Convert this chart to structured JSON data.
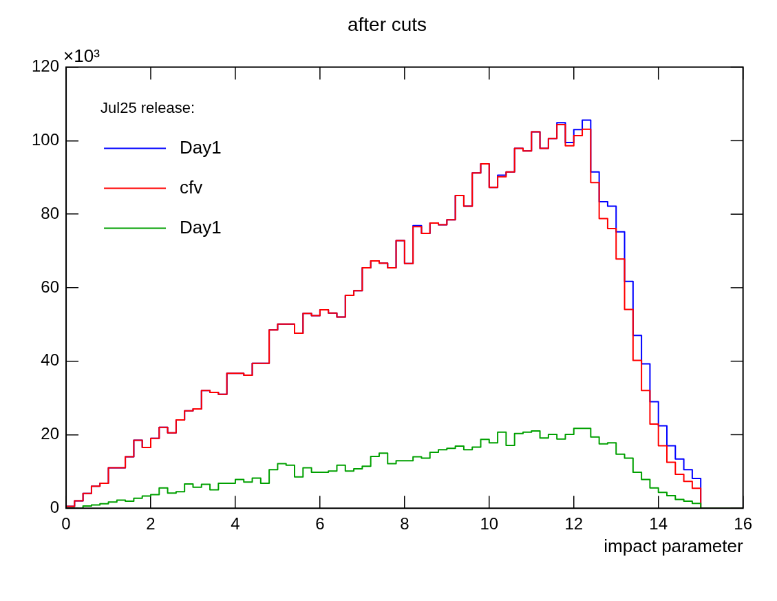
{
  "chart_data": {
    "type": "histogram",
    "title": "after cuts",
    "xlabel": "impact parameter",
    "annotations": [
      "×10³"
    ],
    "legend_title": "Jul25 release:",
    "legend": "top left",
    "bins": [
      0,
      0.2,
      0.4,
      0.6,
      0.8,
      1,
      1.2,
      1.4,
      1.6,
      1.8,
      2,
      2.2,
      2.4,
      2.6,
      2.8,
      3,
      3.2,
      3.4,
      3.6,
      3.8,
      4,
      4.2,
      4.4,
      4.6,
      4.8,
      5,
      5.2,
      5.4,
      5.6,
      5.8,
      6,
      6.2,
      6.4,
      6.6,
      6.8,
      7,
      7.2,
      7.4,
      7.6,
      7.8,
      8,
      8.2,
      8.4,
      8.6,
      8.8,
      9,
      9.2,
      9.4,
      9.6,
      9.8,
      10,
      10.2,
      10.4,
      10.6,
      10.8,
      11,
      11.2,
      11.4,
      11.6,
      11.8,
      12,
      12.2,
      12.4,
      12.6,
      12.8,
      13,
      13.2,
      13.4,
      13.6,
      13.8,
      14,
      14.2,
      14.4,
      14.6,
      14.8,
      15,
      15.2,
      15.4,
      15.6,
      15.8,
      16
    ],
    "series": [
      {
        "name": "Day1",
        "color": "#0000ff",
        "values": [
          0.5,
          2,
          4,
          6,
          6.8,
          11,
          11,
          14,
          18.5,
          16.5,
          19,
          22,
          20.5,
          24,
          26.5,
          27,
          32,
          31.5,
          31,
          36.7,
          36.7,
          36.2,
          39.4,
          39.4,
          48.5,
          50.1,
          50.1,
          47.6,
          53,
          52.4,
          54,
          53.1,
          52,
          57.9,
          59.2,
          65.4,
          67.3,
          66.7,
          65.4,
          72.8,
          66.6,
          76.9,
          74.8,
          77.6,
          77.1,
          78.5,
          85.1,
          82.2,
          91.2,
          93.7,
          87.3,
          90.6,
          91.5,
          97.9,
          97.2,
          102.4,
          97.9,
          100.6,
          104.9,
          99.5,
          103,
          105.6,
          91.5,
          83.4,
          82.2,
          75.2,
          61.7,
          47,
          39.3,
          29,
          22.4,
          17,
          13.4,
          10.5,
          8.1,
          0,
          0,
          0,
          0,
          0
        ]
      },
      {
        "name": "cfv",
        "color": "#ff0000",
        "values": [
          0.5,
          2,
          4,
          6,
          6.8,
          11,
          11,
          14,
          18.5,
          16.5,
          19,
          22,
          20.5,
          24,
          26.5,
          27,
          32,
          31.5,
          31,
          36.7,
          36.7,
          36.2,
          39.4,
          39.4,
          48.5,
          50.1,
          50.1,
          47.6,
          53,
          52.4,
          54,
          53.1,
          52,
          57.9,
          59.2,
          65.4,
          67.3,
          66.7,
          65.4,
          72.8,
          66.6,
          76.6,
          74.8,
          77.6,
          77.1,
          78.5,
          85.1,
          82.2,
          91.2,
          93.7,
          87.3,
          90.2,
          91.5,
          97.9,
          97.2,
          102.4,
          97.9,
          100.6,
          104.4,
          98.6,
          101.4,
          103.1,
          88.6,
          78.8,
          76.1,
          67.8,
          54.1,
          40.2,
          32,
          22.9,
          17,
          12.5,
          9.2,
          7.3,
          5.4,
          0,
          0,
          0,
          0,
          0
        ]
      },
      {
        "name": "Day1",
        "color": "#00a000",
        "values": [
          0,
          0,
          0.6,
          0.9,
          1.2,
          1.7,
          2.2,
          1.9,
          2.7,
          3.3,
          3.7,
          5.5,
          4.1,
          4.5,
          6.6,
          5.7,
          6.5,
          5,
          6.8,
          6.8,
          7.8,
          7.1,
          8.2,
          6.8,
          10.5,
          12.1,
          11.7,
          8.5,
          11,
          9.8,
          9.8,
          10.1,
          11.7,
          10.1,
          10.7,
          11.4,
          14.1,
          15,
          12.1,
          12.9,
          12.9,
          14,
          13.6,
          15.2,
          15.9,
          16.3,
          16.9,
          15.9,
          16.6,
          18.7,
          17.8,
          20.7,
          17.1,
          20.3,
          20.7,
          21,
          19.1,
          20.1,
          18.8,
          20.1,
          21.7,
          21.7,
          19.4,
          17.5,
          17.8,
          14.7,
          13.6,
          9.8,
          7.8,
          5.5,
          4.3,
          3.4,
          2.4,
          1.9,
          1.3,
          0,
          0,
          0,
          0,
          0
        ]
      }
    ],
    "xlim": [
      0,
      16
    ],
    "xticks": [
      0,
      2,
      4,
      6,
      8,
      10,
      12,
      14,
      16
    ],
    "ylim": [
      0,
      120
    ],
    "yticks": [
      0,
      20,
      40,
      60,
      80,
      100,
      120
    ]
  }
}
